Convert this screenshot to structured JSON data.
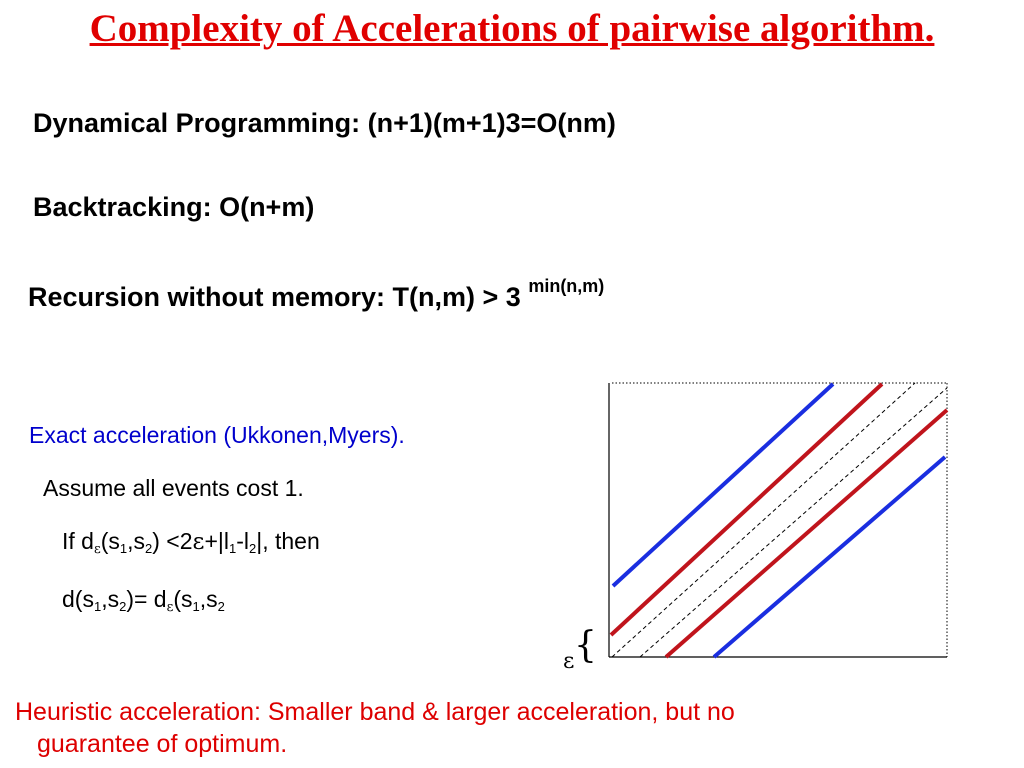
{
  "colors": {
    "title": "#e00000",
    "blue_text": "#0000cc",
    "red_text": "#dd0000",
    "blue_line": "#1a2ee0",
    "red_line": "#c0141c"
  },
  "title": "Complexity of Accelerations of pairwise algorithm.",
  "dp_line": "Dynamical Programming: (n+1)(m+1)3=O(nm)",
  "backtracking_line": "Backtracking: O(n+m)",
  "recursion": {
    "text": "Recursion without memory: T(n,m)  > 3 ",
    "sup": "min(n,m)"
  },
  "exact": {
    "heading": "Exact acceleration (Ukkonen,Myers).",
    "assume": "Assume all events cost 1.",
    "cond": {
      "a": "If d",
      "eps": "ε",
      "b": "(s",
      "one": "1",
      "c": ",s",
      "two": "2",
      "d": ") <2",
      "eps2": "ε",
      "e": "+|l",
      "one2": "1",
      "f": "-l",
      "two2": "2",
      "g": "|, then"
    },
    "result": {
      "a": "d(s",
      "one": "1",
      "b": ",s",
      "two": "2",
      "c": ")= d",
      "eps": "ε",
      "d": "(s",
      "one2": "1",
      "e": ",s",
      "two2": "2"
    }
  },
  "diagram": {
    "brace": "{",
    "epsilon": "ε"
  },
  "heuristic": {
    "line1": "Heuristic acceleration:  Smaller band & larger acceleration, but no",
    "line2": "guarantee of optimum."
  }
}
